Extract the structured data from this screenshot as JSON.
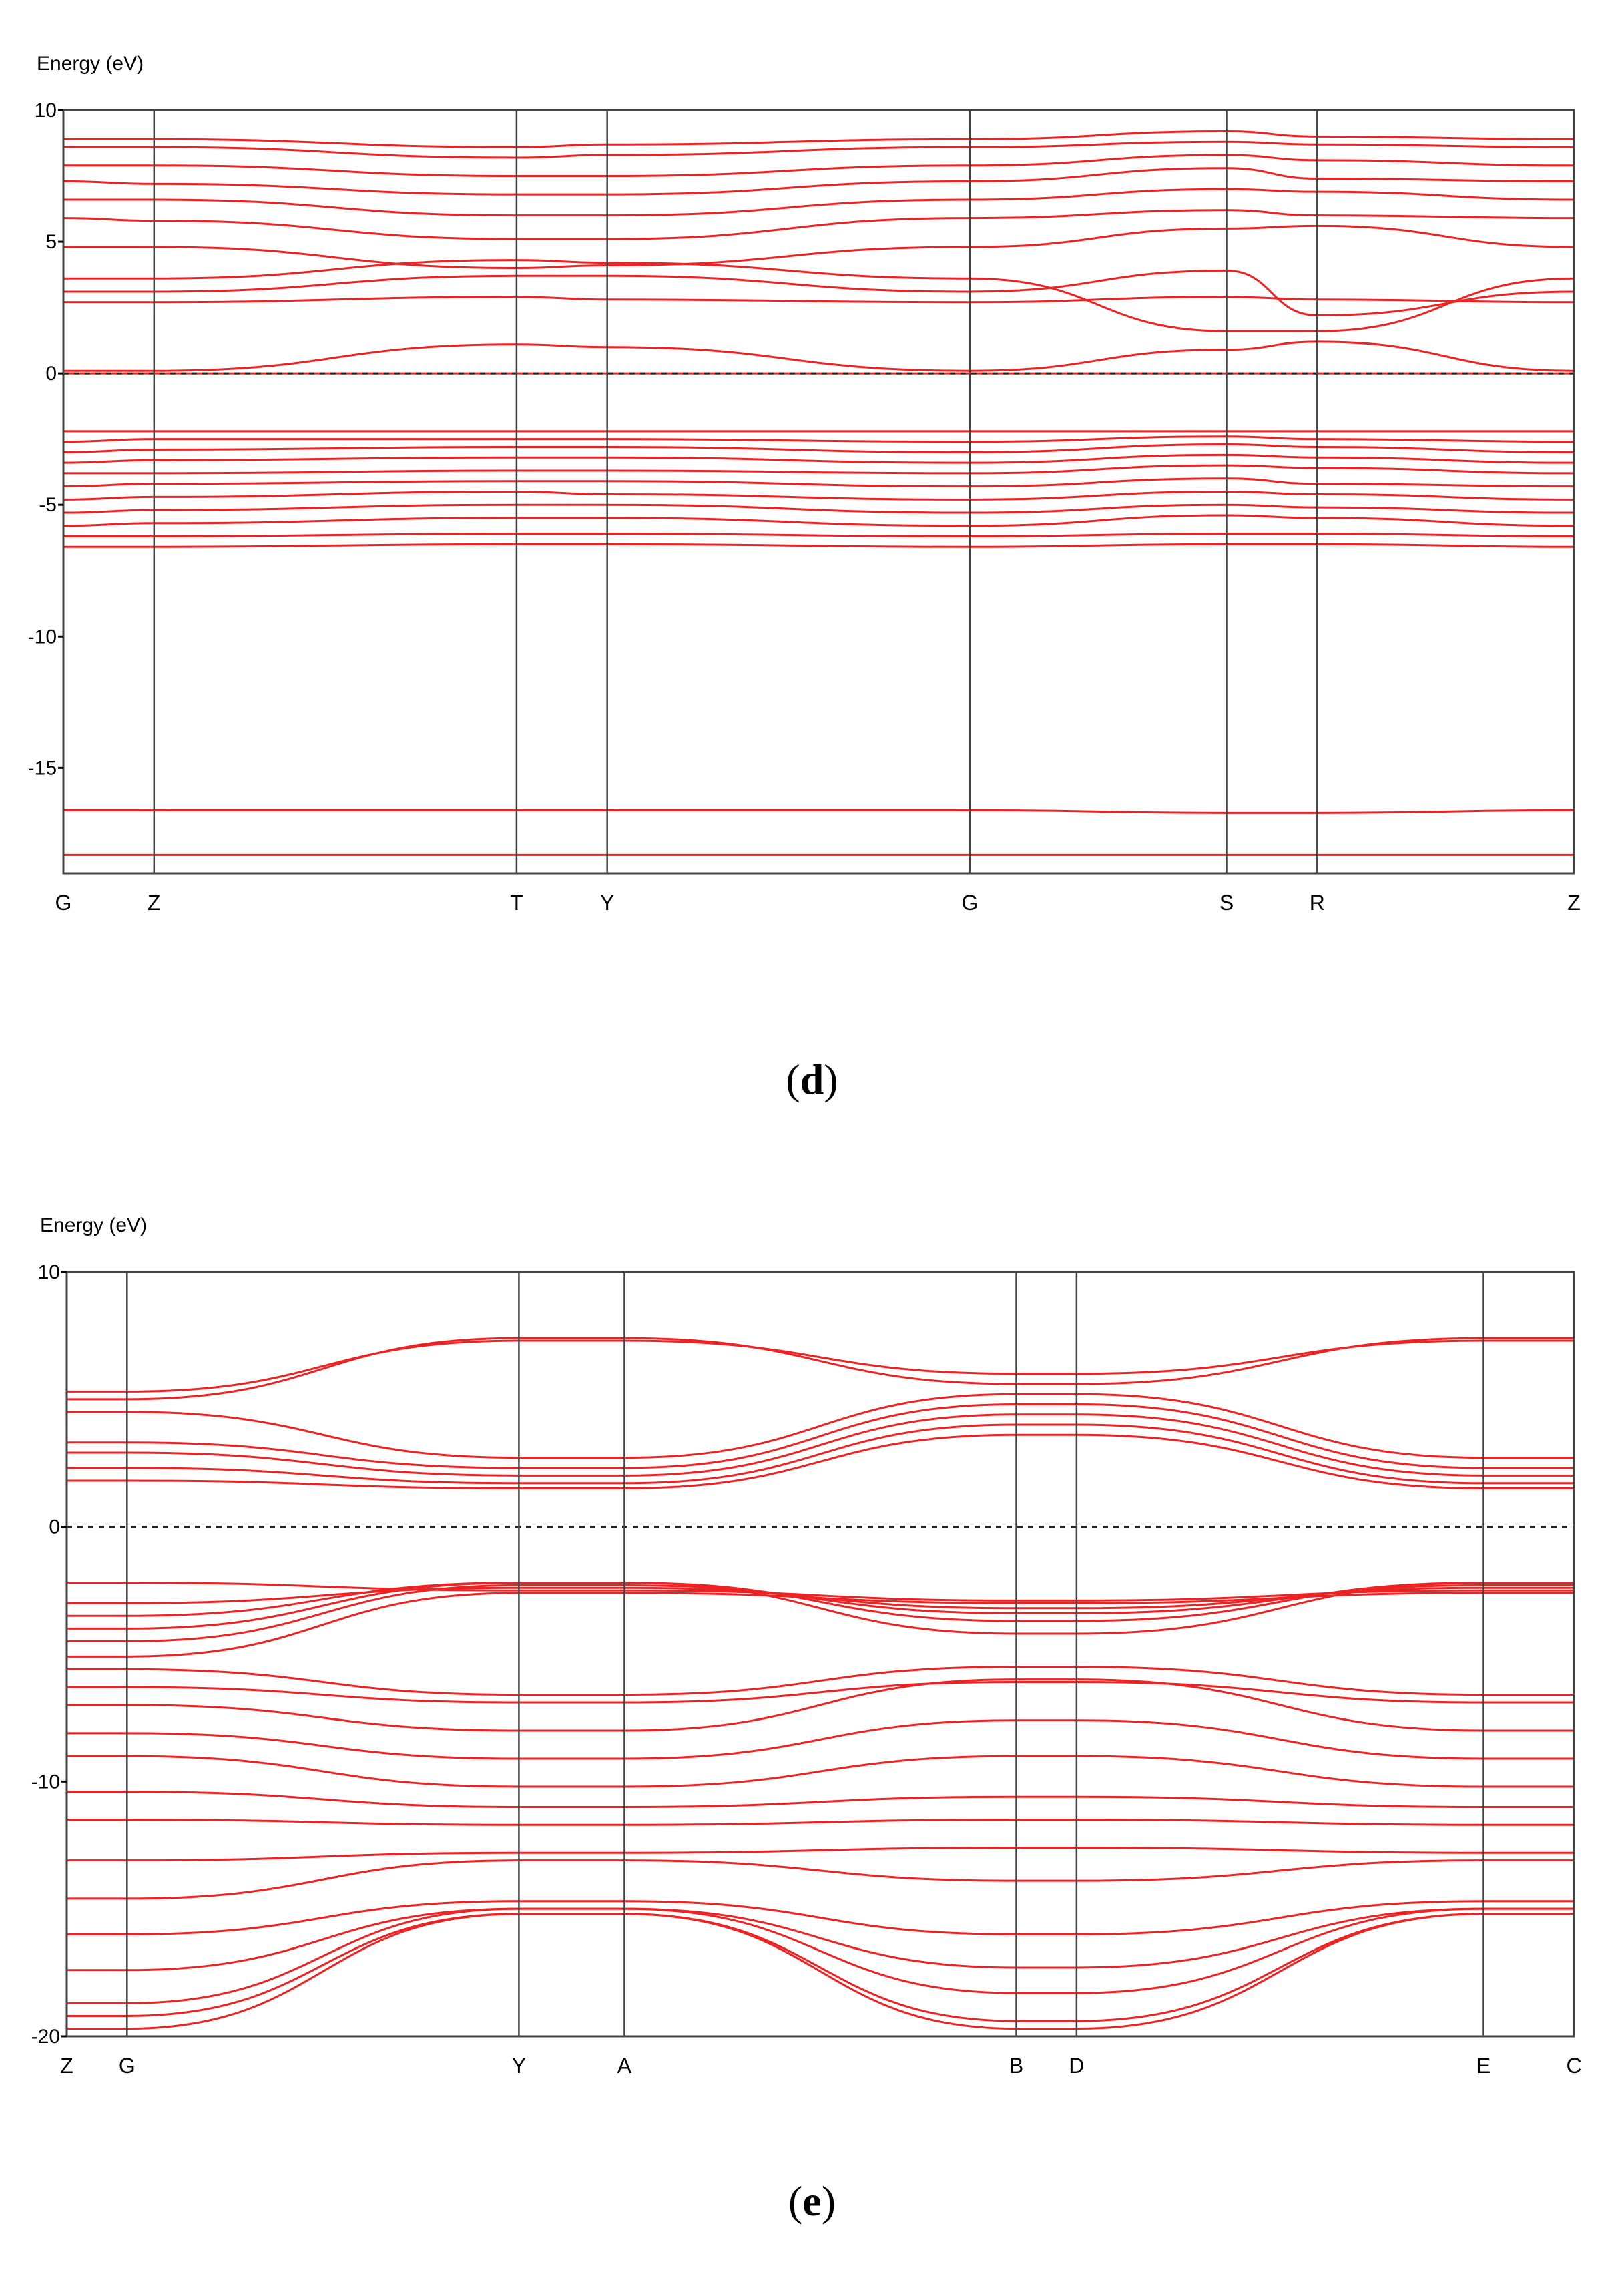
{
  "colors": {
    "band": "#ee2222",
    "axis": "#000000",
    "frame": "#444444",
    "fermi": "#222222"
  },
  "chart_data": [
    {
      "type": "line",
      "panel_label": "d",
      "ylabel": "Energy (eV)",
      "ylim": [
        -19,
        10
      ],
      "yticks": [
        10,
        5,
        0,
        -5,
        -10,
        -15
      ],
      "fermi_level": 0,
      "kpoints": [
        {
          "label": "G",
          "x": 0
        },
        {
          "label": "Z",
          "x": 0.06
        },
        {
          "label": "T",
          "x": 0.3
        },
        {
          "label": "Y",
          "x": 0.36
        },
        {
          "label": "G",
          "x": 0.6
        },
        {
          "label": "S",
          "x": 0.77
        },
        {
          "label": "R",
          "x": 0.83
        },
        {
          "label": "Z",
          "x": 1.0
        }
      ],
      "series": [
        {
          "values": [
            -18.3,
            -18.3,
            -18.3,
            -18.3,
            -18.3,
            -18.3,
            -18.3,
            -18.3
          ]
        },
        {
          "values": [
            -16.6,
            -16.6,
            -16.6,
            -16.6,
            -16.6,
            -16.7,
            -16.7,
            -16.6
          ]
        },
        {
          "values": [
            -6.6,
            -6.6,
            -6.5,
            -6.5,
            -6.6,
            -6.5,
            -6.5,
            -6.6
          ]
        },
        {
          "values": [
            -6.2,
            -6.2,
            -6.1,
            -6.1,
            -6.2,
            -6.1,
            -6.1,
            -6.2
          ]
        },
        {
          "values": [
            -5.8,
            -5.7,
            -5.5,
            -5.5,
            -5.8,
            -5.4,
            -5.5,
            -5.8
          ]
        },
        {
          "values": [
            -5.3,
            -5.2,
            -5.0,
            -5.0,
            -5.3,
            -5.0,
            -5.1,
            -5.3
          ]
        },
        {
          "values": [
            -4.8,
            -4.7,
            -4.5,
            -4.6,
            -4.8,
            -4.5,
            -4.6,
            -4.8
          ]
        },
        {
          "values": [
            -4.3,
            -4.2,
            -4.1,
            -4.1,
            -4.3,
            -4.0,
            -4.2,
            -4.3
          ]
        },
        {
          "values": [
            -3.8,
            -3.8,
            -3.7,
            -3.7,
            -3.8,
            -3.5,
            -3.6,
            -3.8
          ]
        },
        {
          "values": [
            -3.4,
            -3.3,
            -3.2,
            -3.2,
            -3.4,
            -3.1,
            -3.2,
            -3.4
          ]
        },
        {
          "values": [
            -3.0,
            -2.9,
            -2.8,
            -2.8,
            -3.0,
            -2.7,
            -2.8,
            -3.0
          ]
        },
        {
          "values": [
            -2.6,
            -2.5,
            -2.5,
            -2.5,
            -2.6,
            -2.4,
            -2.5,
            -2.6
          ]
        },
        {
          "values": [
            -2.2,
            -2.2,
            -2.2,
            -2.2,
            -2.2,
            -2.2,
            -2.2,
            -2.2
          ]
        },
        {
          "values": [
            0.0,
            0.0,
            0.0,
            0.0,
            0.0,
            0.0,
            0.0,
            0.0
          ]
        },
        {
          "values": [
            0.1,
            0.1,
            1.1,
            1.0,
            0.1,
            0.9,
            1.2,
            0.1
          ]
        },
        {
          "values": [
            2.7,
            2.7,
            2.9,
            2.8,
            2.7,
            2.9,
            2.8,
            2.7
          ]
        },
        {
          "values": [
            3.1,
            3.1,
            3.7,
            3.7,
            3.1,
            3.9,
            2.2,
            3.1
          ]
        },
        {
          "values": [
            3.6,
            3.6,
            4.3,
            4.2,
            3.6,
            1.6,
            1.6,
            3.6
          ]
        },
        {
          "values": [
            4.8,
            4.8,
            4.0,
            4.1,
            4.8,
            5.5,
            5.6,
            4.8
          ]
        },
        {
          "values": [
            5.9,
            5.8,
            5.1,
            5.1,
            5.9,
            6.2,
            6.0,
            5.9
          ]
        },
        {
          "values": [
            6.6,
            6.6,
            6.0,
            6.0,
            6.6,
            7.0,
            6.9,
            6.6
          ]
        },
        {
          "values": [
            7.3,
            7.2,
            6.8,
            6.8,
            7.3,
            7.8,
            7.4,
            7.3
          ]
        },
        {
          "values": [
            7.9,
            7.9,
            7.5,
            7.5,
            7.9,
            8.3,
            8.1,
            7.9
          ]
        },
        {
          "values": [
            8.6,
            8.6,
            8.2,
            8.3,
            8.6,
            8.8,
            8.7,
            8.6
          ]
        },
        {
          "values": [
            8.9,
            8.9,
            8.6,
            8.7,
            8.9,
            9.2,
            9.0,
            8.9
          ]
        }
      ]
    },
    {
      "type": "line",
      "panel_label": "e",
      "ylabel": "Energy (eV)",
      "ylim": [
        -20,
        10
      ],
      "yticks": [
        10,
        0,
        -10,
        -20
      ],
      "fermi_level": 0,
      "kpoints": [
        {
          "label": "Z",
          "x": 0
        },
        {
          "label": "G",
          "x": 0.04
        },
        {
          "label": "Y",
          "x": 0.3
        },
        {
          "label": "A",
          "x": 0.37
        },
        {
          "label": "B",
          "x": 0.63
        },
        {
          "label": "D",
          "x": 0.67
        },
        {
          "label": "E",
          "x": 0.94
        },
        {
          "label": "C",
          "x": 1.0
        }
      ],
      "series": [
        {
          "values": [
            -19.7,
            -19.7,
            -15.2,
            -15.2,
            -19.7,
            -19.7,
            -15.2,
            -15.2
          ]
        },
        {
          "values": [
            -19.2,
            -19.2,
            -15.2,
            -15.2,
            -19.4,
            -19.4,
            -15.2,
            -15.2
          ]
        },
        {
          "values": [
            -18.7,
            -18.7,
            -15.0,
            -15.0,
            -18.3,
            -18.3,
            -15.0,
            -15.0
          ]
        },
        {
          "values": [
            -17.4,
            -17.4,
            -15.0,
            -15.0,
            -17.3,
            -17.3,
            -15.0,
            -15.0
          ]
        },
        {
          "values": [
            -16.0,
            -16.0,
            -14.7,
            -14.7,
            -16.0,
            -16.0,
            -14.7,
            -14.7
          ]
        },
        {
          "values": [
            -14.6,
            -14.6,
            -13.1,
            -13.1,
            -13.9,
            -13.9,
            -13.1,
            -13.1
          ]
        },
        {
          "values": [
            -13.1,
            -13.1,
            -12.8,
            -12.8,
            -12.6,
            -12.6,
            -12.8,
            -12.8
          ]
        },
        {
          "values": [
            -11.5,
            -11.5,
            -11.7,
            -11.7,
            -11.5,
            -11.5,
            -11.7,
            -11.7
          ]
        },
        {
          "values": [
            -10.4,
            -10.4,
            -11.0,
            -11.0,
            -10.6,
            -10.6,
            -11.0,
            -11.0
          ]
        },
        {
          "values": [
            -9.0,
            -9.0,
            -10.2,
            -10.2,
            -9.0,
            -9.0,
            -10.2,
            -10.2
          ]
        },
        {
          "values": [
            -8.1,
            -8.1,
            -9.1,
            -9.1,
            -7.6,
            -7.6,
            -9.1,
            -9.1
          ]
        },
        {
          "values": [
            -7.0,
            -7.0,
            -8.0,
            -8.0,
            -6.0,
            -6.0,
            -8.0,
            -8.0
          ]
        },
        {
          "values": [
            -6.3,
            -6.3,
            -6.9,
            -6.9,
            -6.1,
            -6.1,
            -6.9,
            -6.9
          ]
        },
        {
          "values": [
            -5.6,
            -5.6,
            -6.6,
            -6.6,
            -5.5,
            -5.5,
            -6.6,
            -6.6
          ]
        },
        {
          "values": [
            -5.1,
            -5.1,
            -2.6,
            -2.6,
            -3.0,
            -3.0,
            -2.6,
            -2.6
          ]
        },
        {
          "values": [
            -4.5,
            -4.5,
            -2.3,
            -2.3,
            -3.4,
            -3.4,
            -2.3,
            -2.3
          ]
        },
        {
          "values": [
            -4.0,
            -4.0,
            -2.2,
            -2.2,
            -4.2,
            -4.2,
            -2.2,
            -2.2
          ]
        },
        {
          "values": [
            -3.5,
            -3.5,
            -2.2,
            -2.2,
            -3.7,
            -3.7,
            -2.2,
            -2.2
          ]
        },
        {
          "values": [
            -3.0,
            -3.0,
            -2.4,
            -2.4,
            -3.2,
            -3.2,
            -2.4,
            -2.4
          ]
        },
        {
          "values": [
            -2.2,
            -2.2,
            -2.5,
            -2.5,
            -2.9,
            -2.9,
            -2.5,
            -2.5
          ]
        },
        {
          "values": [
            1.8,
            1.8,
            1.5,
            1.5,
            3.6,
            3.6,
            1.5,
            1.5
          ]
        },
        {
          "values": [
            2.3,
            2.3,
            1.7,
            1.7,
            4.0,
            4.0,
            1.7,
            1.7
          ]
        },
        {
          "values": [
            2.9,
            2.9,
            2.0,
            2.0,
            4.4,
            4.4,
            2.0,
            2.0
          ]
        },
        {
          "values": [
            3.3,
            3.3,
            2.3,
            2.3,
            4.8,
            4.8,
            2.3,
            2.3
          ]
        },
        {
          "values": [
            4.5,
            4.5,
            2.7,
            2.7,
            5.2,
            5.2,
            2.7,
            2.7
          ]
        },
        {
          "values": [
            5.0,
            5.0,
            7.4,
            7.4,
            5.6,
            5.6,
            7.4,
            7.4
          ]
        },
        {
          "values": [
            5.3,
            5.3,
            7.3,
            7.3,
            6.0,
            6.0,
            7.3,
            7.3
          ]
        }
      ]
    }
  ],
  "captions": {
    "d": "d",
    "e": "e"
  }
}
